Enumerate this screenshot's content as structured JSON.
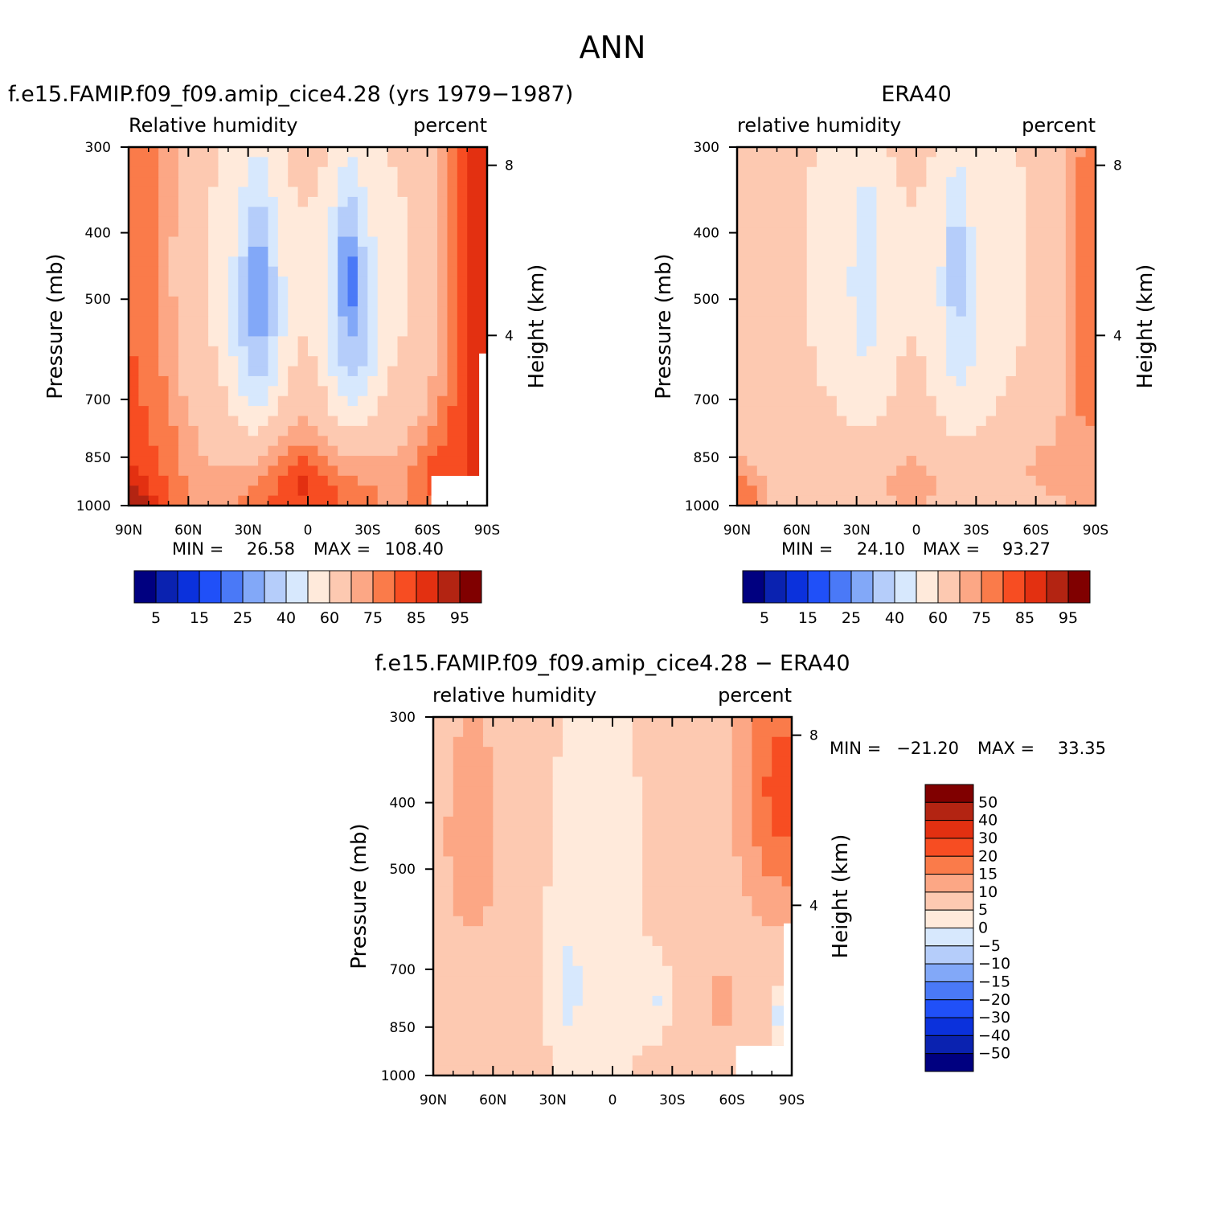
{
  "figure_title": "ANN",
  "chart_data": [
    {
      "type": "heatmap",
      "title": "f.e15.FAMIP.f09_f09.amip_cice4.28 (yrs 1979−1987)",
      "subtitle_left": "Relative humidity",
      "subtitle_right": "percent",
      "ylabel": "Pressure (mb)",
      "ylabel_right": "Height (km)",
      "x_ticks": [
        "90N",
        "60N",
        "30N",
        "0",
        "30S",
        "60S",
        "90S"
      ],
      "x_values": [
        90,
        60,
        30,
        0,
        -30,
        -60,
        -90
      ],
      "y_ticks": [
        "300",
        "400",
        "500",
        "700",
        "850",
        "1000"
      ],
      "y_values": [
        300,
        400,
        500,
        700,
        850,
        1000
      ],
      "y_right_ticks": [
        "8",
        "4"
      ],
      "y_right_values": [
        8,
        4
      ],
      "ylim": [
        300,
        1000
      ],
      "xlim": [
        90,
        -90
      ],
      "stats": {
        "min_label": "MIN =",
        "min": "26.58",
        "max_label": "MAX =",
        "max": "108.40"
      },
      "levels": [
        5,
        10,
        15,
        20,
        25,
        30,
        40,
        50,
        60,
        70,
        75,
        80,
        85,
        90,
        95
      ],
      "colorbar_labels": [
        "5",
        "15",
        "25",
        "40",
        "60",
        "75",
        "85",
        "95"
      ],
      "colors": [
        "#000080",
        "#0a22b0",
        "#0b31dc",
        "#2050f8",
        "#4a79f7",
        "#82a8f8",
        "#b5cdfa",
        "#d7e8fd",
        "#ffeadb",
        "#fdc9b1",
        "#fca785",
        "#fa7b4a",
        "#f74d22",
        "#e33011",
        "#b32412",
        "#800000"
      ],
      "fields": {
        "bg": 85,
        "mid_lat": 75,
        "sub_lat": 60,
        "tropic": 70,
        "dry_n": 40,
        "dry_s": 40,
        "core_n": 30,
        "core_s": 25,
        "polar_s": 95,
        "ant_mask": true
      }
    },
    {
      "type": "heatmap",
      "title": "ERA40",
      "subtitle_left": "relative humidity",
      "subtitle_right": "percent",
      "ylabel": "Pressure (mb)",
      "ylabel_right": "Height (km)",
      "x_ticks": [
        "90N",
        "60N",
        "30N",
        "0",
        "30S",
        "60S",
        "90S"
      ],
      "x_values": [
        90,
        60,
        30,
        0,
        -30,
        -60,
        -90
      ],
      "y_ticks": [
        "300",
        "400",
        "500",
        "700",
        "850",
        "1000"
      ],
      "y_values": [
        300,
        400,
        500,
        700,
        850,
        1000
      ],
      "y_right_ticks": [
        "8",
        "4"
      ],
      "y_right_values": [
        8,
        4
      ],
      "ylim": [
        300,
        1000
      ],
      "xlim": [
        90,
        -90
      ],
      "stats": {
        "min_label": "MIN =",
        "min": "24.10",
        "max_label": "MAX =",
        "max": "93.27"
      },
      "levels": [
        5,
        10,
        15,
        20,
        25,
        30,
        40,
        50,
        60,
        70,
        75,
        80,
        85,
        90,
        95
      ],
      "colorbar_labels": [
        "5",
        "15",
        "25",
        "40",
        "60",
        "75",
        "85",
        "95"
      ],
      "colors": [
        "#000080",
        "#0a22b0",
        "#0b31dc",
        "#2050f8",
        "#4a79f7",
        "#82a8f8",
        "#b5cdfa",
        "#d7e8fd",
        "#ffeadb",
        "#fdc9b1",
        "#fca785",
        "#fa7b4a",
        "#f74d22",
        "#e33011",
        "#b32412",
        "#800000"
      ],
      "fields": {
        "bg": 70,
        "mid_lat": 65,
        "sub_lat": 60,
        "tropic": 50,
        "dry_n": 40,
        "dry_s": 35,
        "core_n": 30,
        "core_s": 25,
        "polar_s": 80,
        "ant_mask": false
      }
    },
    {
      "type": "heatmap",
      "title": "f.e15.FAMIP.f09_f09.amip_cice4.28 − ERA40",
      "subtitle_left": "relative humidity",
      "subtitle_right": "percent",
      "ylabel": "Pressure (mb)",
      "ylabel_right": "Height (km)",
      "x_ticks": [
        "90N",
        "60N",
        "30N",
        "0",
        "30S",
        "60S",
        "90S"
      ],
      "x_values": [
        90,
        60,
        30,
        0,
        -30,
        -60,
        -90
      ],
      "y_ticks": [
        "300",
        "400",
        "500",
        "700",
        "850",
        "1000"
      ],
      "y_values": [
        300,
        400,
        500,
        700,
        850,
        1000
      ],
      "y_right_ticks": [
        "8",
        "4"
      ],
      "y_right_values": [
        8,
        4
      ],
      "ylim": [
        300,
        1000
      ],
      "xlim": [
        90,
        -90
      ],
      "stats": {
        "min_label": "MIN =",
        "min": "−21.20",
        "max_label": "MAX =",
        "max": "33.35"
      },
      "levels": [
        -50,
        -40,
        -30,
        -20,
        -15,
        -10,
        -5,
        0,
        5,
        10,
        15,
        20,
        30,
        40,
        50
      ],
      "colorbar_labels": [
        "50",
        "40",
        "30",
        "20",
        "15",
        "10",
        "5",
        "0",
        "−5",
        "−10",
        "−15",
        "−20",
        "−30",
        "−40",
        "−50"
      ],
      "colors": [
        "#000080",
        "#0a22b0",
        "#0b31dc",
        "#2050f8",
        "#4a79f7",
        "#82a8f8",
        "#b5cdfa",
        "#d7e8fd",
        "#ffeadb",
        "#fdc9b1",
        "#fca785",
        "#fa7b4a",
        "#f74d22",
        "#e33011",
        "#b32412",
        "#800000"
      ],
      "fields": {
        "bg": 7,
        "north": 12,
        "trop": 3,
        "neg_n": -3,
        "neg_s": -3,
        "south_up": 22,
        "south_mid": 12,
        "ant_neg": -12,
        "ant_mask": true
      }
    }
  ]
}
